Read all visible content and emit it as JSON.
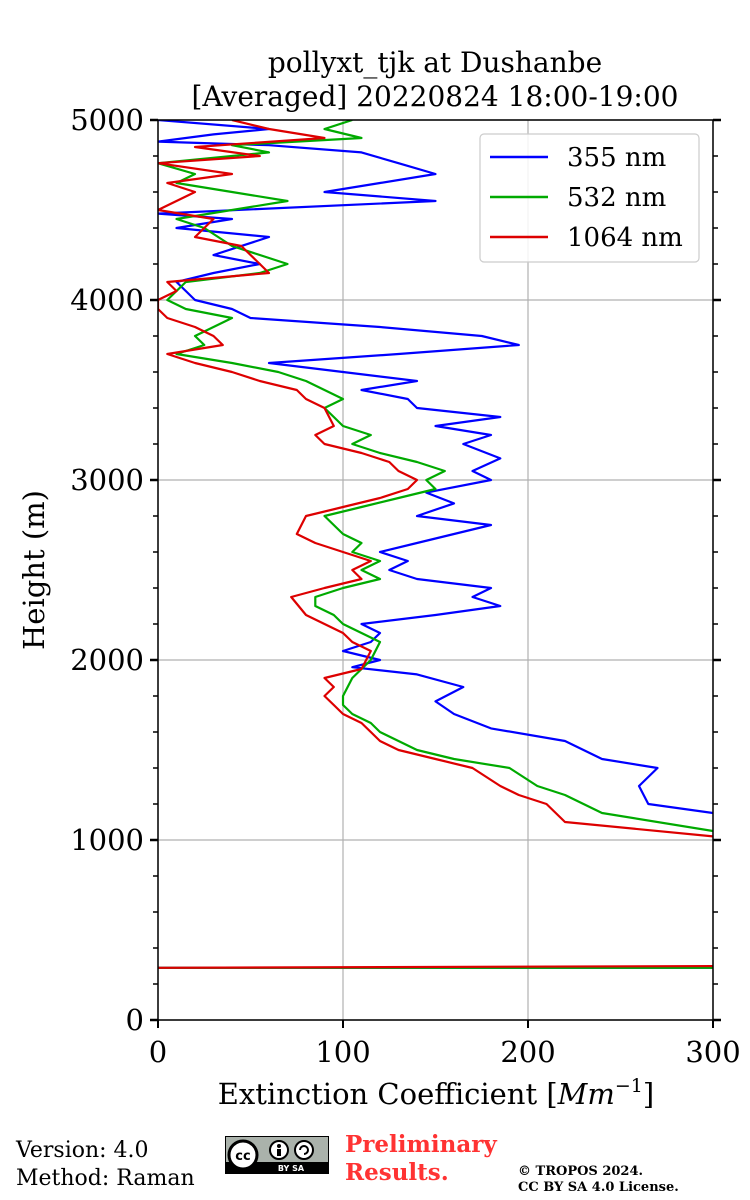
{
  "chart_data": {
    "type": "line",
    "title": "pollyxt_tjk at Dushanbe",
    "subtitle": "[Averaged] 20220824 18:00-19:00",
    "xlabel": "Extinction Coefficient",
    "xlabel_unit": "Mm",
    "xlabel_unit_exp": "−1",
    "ylabel": "Height (m)",
    "xlim": [
      0,
      300
    ],
    "ylim": [
      0,
      5000
    ],
    "xticks": [
      "0",
      "100",
      "200",
      "300"
    ],
    "yticks": [
      "0",
      "1000",
      "2000",
      "3000",
      "4000",
      "5000"
    ],
    "grid": true,
    "legend_position": "top-right",
    "series": [
      {
        "name": "355 nm",
        "color": "#0000ff",
        "points": [
          [
            310,
            290
          ],
          [
            0,
            290
          ],
          [
            null,
            null
          ],
          [
            300,
            1150
          ],
          [
            265,
            1200
          ],
          [
            260,
            1300
          ],
          [
            270,
            1400
          ],
          [
            240,
            1450
          ],
          [
            220,
            1550
          ],
          [
            180,
            1620
          ],
          [
            160,
            1700
          ],
          [
            150,
            1770
          ],
          [
            165,
            1850
          ],
          [
            140,
            1920
          ],
          [
            105,
            1960
          ],
          [
            120,
            2000
          ],
          [
            100,
            2050
          ],
          [
            115,
            2100
          ],
          [
            120,
            2150
          ],
          [
            110,
            2200
          ],
          [
            150,
            2250
          ],
          [
            185,
            2300
          ],
          [
            170,
            2350
          ],
          [
            180,
            2400
          ],
          [
            140,
            2450
          ],
          [
            125,
            2500
          ],
          [
            135,
            2550
          ],
          [
            120,
            2600
          ],
          [
            140,
            2650
          ],
          [
            160,
            2700
          ],
          [
            180,
            2750
          ],
          [
            140,
            2800
          ],
          [
            160,
            2870
          ],
          [
            145,
            2930
          ],
          [
            180,
            3000
          ],
          [
            170,
            3050
          ],
          [
            185,
            3120
          ],
          [
            165,
            3200
          ],
          [
            180,
            3250
          ],
          [
            150,
            3300
          ],
          [
            185,
            3350
          ],
          [
            140,
            3400
          ],
          [
            135,
            3450
          ],
          [
            110,
            3500
          ],
          [
            140,
            3550
          ],
          [
            100,
            3600
          ],
          [
            60,
            3650
          ],
          [
            130,
            3700
          ],
          [
            195,
            3750
          ],
          [
            175,
            3800
          ],
          [
            120,
            3850
          ],
          [
            50,
            3900
          ],
          [
            40,
            3950
          ],
          [
            20,
            4000
          ],
          [
            15,
            4050
          ],
          [
            10,
            4100
          ],
          [
            30,
            4150
          ],
          [
            55,
            4200
          ],
          [
            30,
            4250
          ],
          [
            60,
            4350
          ],
          [
            10,
            4400
          ],
          [
            40,
            4450
          ],
          [
            0,
            4480
          ],
          [
            150,
            4550
          ],
          [
            90,
            4600
          ],
          [
            120,
            4650
          ],
          [
            150,
            4700
          ],
          [
            130,
            4760
          ],
          [
            110,
            4820
          ],
          [
            60,
            4860
          ],
          [
            0,
            4880
          ],
          [
            30,
            4920
          ],
          [
            60,
            4950
          ],
          [
            0,
            5000
          ]
        ]
      },
      {
        "name": "532 nm",
        "color": "#00aa00",
        "points": [
          [
            310,
            290
          ],
          [
            0,
            290
          ],
          [
            null,
            null
          ],
          [
            300,
            1050
          ],
          [
            240,
            1150
          ],
          [
            230,
            1200
          ],
          [
            220,
            1250
          ],
          [
            205,
            1300
          ],
          [
            190,
            1400
          ],
          [
            160,
            1450
          ],
          [
            140,
            1500
          ],
          [
            130,
            1550
          ],
          [
            120,
            1600
          ],
          [
            115,
            1650
          ],
          [
            105,
            1700
          ],
          [
            100,
            1750
          ],
          [
            100,
            1800
          ],
          [
            105,
            1900
          ],
          [
            115,
            2000
          ],
          [
            120,
            2100
          ],
          [
            110,
            2150
          ],
          [
            100,
            2200
          ],
          [
            95,
            2250
          ],
          [
            85,
            2300
          ],
          [
            85,
            2350
          ],
          [
            100,
            2400
          ],
          [
            120,
            2450
          ],
          [
            110,
            2500
          ],
          [
            120,
            2550
          ],
          [
            105,
            2600
          ],
          [
            110,
            2650
          ],
          [
            100,
            2700
          ],
          [
            90,
            2800
          ],
          [
            110,
            2850
          ],
          [
            130,
            2900
          ],
          [
            150,
            2950
          ],
          [
            145,
            3000
          ],
          [
            155,
            3050
          ],
          [
            140,
            3100
          ],
          [
            120,
            3150
          ],
          [
            105,
            3200
          ],
          [
            115,
            3250
          ],
          [
            100,
            3300
          ],
          [
            95,
            3350
          ],
          [
            90,
            3400
          ],
          [
            100,
            3450
          ],
          [
            80,
            3550
          ],
          [
            65,
            3600
          ],
          [
            40,
            3650
          ],
          [
            10,
            3700
          ],
          [
            25,
            3750
          ],
          [
            20,
            3800
          ],
          [
            30,
            3850
          ],
          [
            40,
            3900
          ],
          [
            15,
            3950
          ],
          [
            5,
            4000
          ],
          [
            10,
            4050
          ],
          [
            15,
            4100
          ],
          [
            55,
            4150
          ],
          [
            70,
            4200
          ],
          [
            40,
            4300
          ],
          [
            25,
            4400
          ],
          [
            10,
            4450
          ],
          [
            70,
            4550
          ],
          [
            40,
            4600
          ],
          [
            10,
            4650
          ],
          [
            20,
            4700
          ],
          [
            0,
            4760
          ],
          [
            60,
            4820
          ],
          [
            40,
            4860
          ],
          [
            110,
            4900
          ],
          [
            90,
            4950
          ],
          [
            105,
            5000
          ]
        ]
      },
      {
        "name": "1064 nm",
        "color": "#dd0000",
        "points": [
          [
            310,
            300
          ],
          [
            0,
            290
          ],
          [
            null,
            null
          ],
          [
            300,
            1020
          ],
          [
            220,
            1100
          ],
          [
            210,
            1200
          ],
          [
            195,
            1250
          ],
          [
            185,
            1300
          ],
          [
            170,
            1400
          ],
          [
            150,
            1450
          ],
          [
            130,
            1500
          ],
          [
            120,
            1550
          ],
          [
            115,
            1600
          ],
          [
            110,
            1650
          ],
          [
            100,
            1700
          ],
          [
            95,
            1750
          ],
          [
            90,
            1800
          ],
          [
            95,
            1850
          ],
          [
            90,
            1900
          ],
          [
            110,
            1950
          ],
          [
            115,
            2050
          ],
          [
            105,
            2100
          ],
          [
            100,
            2150
          ],
          [
            90,
            2200
          ],
          [
            80,
            2250
          ],
          [
            72,
            2350
          ],
          [
            90,
            2400
          ],
          [
            110,
            2450
          ],
          [
            105,
            2500
          ],
          [
            115,
            2550
          ],
          [
            100,
            2600
          ],
          [
            85,
            2650
          ],
          [
            75,
            2700
          ],
          [
            80,
            2800
          ],
          [
            100,
            2850
          ],
          [
            120,
            2900
          ],
          [
            135,
            2950
          ],
          [
            140,
            3000
          ],
          [
            130,
            3050
          ],
          [
            125,
            3100
          ],
          [
            110,
            3150
          ],
          [
            90,
            3200
          ],
          [
            85,
            3250
          ],
          [
            95,
            3300
          ],
          [
            90,
            3400
          ],
          [
            80,
            3450
          ],
          [
            75,
            3500
          ],
          [
            55,
            3550
          ],
          [
            40,
            3600
          ],
          [
            20,
            3650
          ],
          [
            5,
            3700
          ],
          [
            35,
            3750
          ],
          [
            30,
            3800
          ],
          [
            20,
            3850
          ],
          [
            5,
            3900
          ],
          [
            0,
            3950
          ],
          [
            0,
            4000
          ],
          [
            10,
            4050
          ],
          [
            5,
            4100
          ],
          [
            60,
            4150
          ],
          [
            55,
            4200
          ],
          [
            45,
            4300
          ],
          [
            20,
            4350
          ],
          [
            30,
            4450
          ],
          [
            0,
            4500
          ],
          [
            20,
            4600
          ],
          [
            5,
            4650
          ],
          [
            40,
            4700
          ],
          [
            0,
            4760
          ],
          [
            55,
            4800
          ],
          [
            20,
            4850
          ],
          [
            90,
            4900
          ],
          [
            60,
            4950
          ],
          [
            40,
            5000
          ]
        ]
      }
    ]
  },
  "footer": {
    "version": "Version: 4.0",
    "method": "Method: Raman",
    "preliminary_line1": "Preliminary",
    "preliminary_line2": "Results.",
    "copyright_line1": "© TROPOS 2024.",
    "copyright_line2": "CC BY SA 4.0 License.",
    "cc_badge": "cc-by-sa-icon",
    "cc_badge_text": "BY SA"
  }
}
